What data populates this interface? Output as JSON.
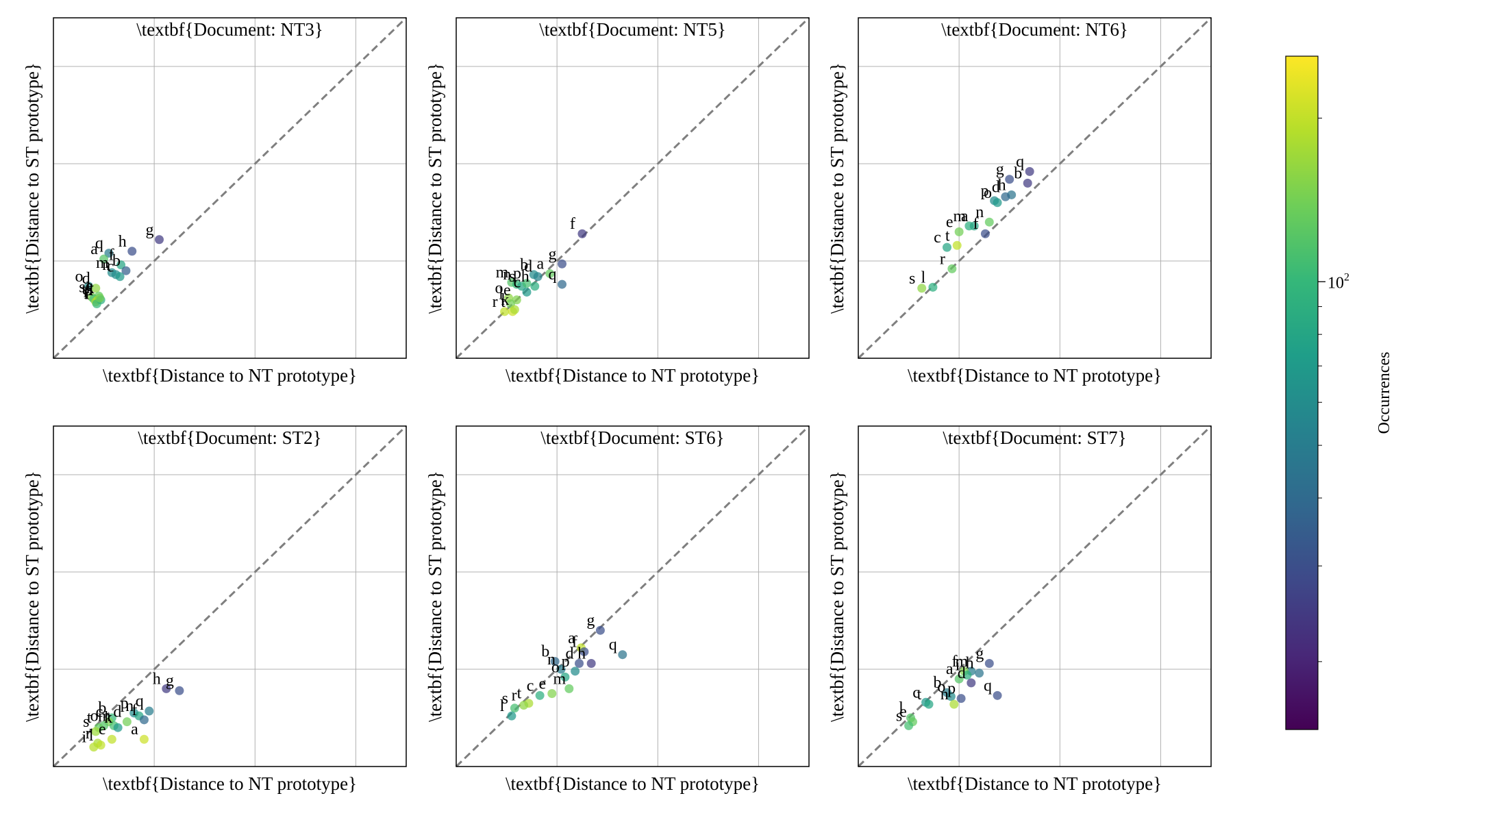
{
  "colors": {
    "grid": "#b0b0b0",
    "diagonal": "#7f7f7f",
    "frame": "#000000",
    "viridis": [
      "#440154",
      "#482878",
      "#3e4989",
      "#31688e",
      "#26828e",
      "#1f9e89",
      "#35b779",
      "#6ece58",
      "#b5de2b",
      "#fde725"
    ]
  },
  "chart_data": [
    {
      "type": "scatter",
      "title": "\\textbf{Document: NT3}",
      "xlabel": "\\textbf{Distance to NT prototype}",
      "ylabel": "\\textbf{Distance to ST prototype}",
      "xlim": [
        0,
        3.5
      ],
      "ylim": [
        0,
        3.5
      ],
      "grid": true,
      "diagonal": "y=x",
      "points": [
        {
          "label": "g",
          "x": 1.05,
          "y": 1.22,
          "occ": 25
        },
        {
          "label": "h",
          "x": 0.78,
          "y": 1.1,
          "occ": 30
        },
        {
          "label": "q",
          "x": 0.55,
          "y": 1.08,
          "occ": 50
        },
        {
          "label": "a",
          "x": 0.5,
          "y": 1.02,
          "occ": 120
        },
        {
          "label": "f",
          "x": 0.67,
          "y": 0.96,
          "occ": 80
        },
        {
          "label": "b",
          "x": 0.72,
          "y": 0.9,
          "occ": 35
        },
        {
          "label": "m",
          "x": 0.58,
          "y": 0.88,
          "occ": 60
        },
        {
          "label": "n",
          "x": 0.62,
          "y": 0.86,
          "occ": 60
        },
        {
          "label": "c",
          "x": 0.66,
          "y": 0.84,
          "occ": 70
        },
        {
          "label": "o",
          "x": 0.35,
          "y": 0.74,
          "occ": 60
        },
        {
          "label": "d",
          "x": 0.42,
          "y": 0.72,
          "occ": 160
        },
        {
          "label": "e",
          "x": 0.45,
          "y": 0.64,
          "occ": 130
        },
        {
          "label": "s",
          "x": 0.38,
          "y": 0.63,
          "occ": 150
        },
        {
          "label": "t",
          "x": 0.4,
          "y": 0.61,
          "occ": 110
        },
        {
          "label": "p",
          "x": 0.44,
          "y": 0.6,
          "occ": 200
        },
        {
          "label": "r",
          "x": 0.42,
          "y": 0.58,
          "occ": 180
        },
        {
          "label": "l",
          "x": 0.47,
          "y": 0.6,
          "occ": 90
        },
        {
          "label": "i",
          "x": 0.43,
          "y": 0.56,
          "occ": 100
        },
        {
          "label": "k",
          "x": 0.46,
          "y": 0.62,
          "occ": 140
        }
      ]
    },
    {
      "type": "scatter",
      "title": "\\textbf{Document: NT5}",
      "xlabel": "\\textbf{Distance to NT prototype}",
      "ylabel": "\\textbf{Distance to ST prototype}",
      "xlim": [
        0,
        3.5
      ],
      "ylim": [
        0,
        3.5
      ],
      "grid": true,
      "diagonal": "y=x",
      "points": [
        {
          "label": "f",
          "x": 1.25,
          "y": 1.28,
          "occ": 25
        },
        {
          "label": "g",
          "x": 1.05,
          "y": 0.97,
          "occ": 30
        },
        {
          "label": "a",
          "x": 0.93,
          "y": 0.87,
          "occ": 130
        },
        {
          "label": "b",
          "x": 0.77,
          "y": 0.86,
          "occ": 60
        },
        {
          "label": "d",
          "x": 0.81,
          "y": 0.84,
          "occ": 55
        },
        {
          "label": "q",
          "x": 1.05,
          "y": 0.76,
          "occ": 40
        },
        {
          "label": "m",
          "x": 0.55,
          "y": 0.78,
          "occ": 120
        },
        {
          "label": "n",
          "x": 0.6,
          "y": 0.76,
          "occ": 100
        },
        {
          "label": "s",
          "x": 0.65,
          "y": 0.74,
          "occ": 80
        },
        {
          "label": "p",
          "x": 0.7,
          "y": 0.77,
          "occ": 110
        },
        {
          "label": "h",
          "x": 0.78,
          "y": 0.74,
          "occ": 90
        },
        {
          "label": "c",
          "x": 0.7,
          "y": 0.68,
          "occ": 70
        },
        {
          "label": "o",
          "x": 0.52,
          "y": 0.62,
          "occ": 160
        },
        {
          "label": "e",
          "x": 0.6,
          "y": 0.6,
          "occ": 150
        },
        {
          "label": "l",
          "x": 0.54,
          "y": 0.56,
          "occ": 140
        },
        {
          "label": "r",
          "x": 0.48,
          "y": 0.48,
          "occ": 200
        },
        {
          "label": "t",
          "x": 0.56,
          "y": 0.48,
          "occ": 210
        },
        {
          "label": "k",
          "x": 0.58,
          "y": 0.5,
          "occ": 180
        }
      ]
    },
    {
      "type": "scatter",
      "title": "\\textbf{Document: NT6}",
      "xlabel": "\\textbf{Distance to NT prototype}",
      "ylabel": "\\textbf{Distance to ST prototype}",
      "xlim": [
        0,
        3.5
      ],
      "ylim": [
        0,
        3.5
      ],
      "grid": true,
      "diagonal": "y=x",
      "points": [
        {
          "label": "q",
          "x": 1.7,
          "y": 1.92,
          "occ": 25
        },
        {
          "label": "g",
          "x": 1.5,
          "y": 1.84,
          "occ": 30
        },
        {
          "label": "b",
          "x": 1.68,
          "y": 1.8,
          "occ": 25
        },
        {
          "label": "h",
          "x": 1.52,
          "y": 1.68,
          "occ": 45
        },
        {
          "label": "d",
          "x": 1.46,
          "y": 1.66,
          "occ": 40
        },
        {
          "label": "p",
          "x": 1.35,
          "y": 1.62,
          "occ": 60
        },
        {
          "label": "o",
          "x": 1.38,
          "y": 1.6,
          "occ": 70
        },
        {
          "label": "m",
          "x": 1.1,
          "y": 1.36,
          "occ": 90
        },
        {
          "label": "a",
          "x": 1.15,
          "y": 1.36,
          "occ": 80
        },
        {
          "label": "n",
          "x": 1.3,
          "y": 1.4,
          "occ": 130
        },
        {
          "label": "e",
          "x": 1.0,
          "y": 1.3,
          "occ": 140
        },
        {
          "label": "f",
          "x": 1.26,
          "y": 1.28,
          "occ": 30
        },
        {
          "label": "c",
          "x": 0.88,
          "y": 1.14,
          "occ": 80
        },
        {
          "label": "t",
          "x": 0.98,
          "y": 1.16,
          "occ": 200
        },
        {
          "label": "r",
          "x": 0.93,
          "y": 0.92,
          "occ": 130
        },
        {
          "label": "l",
          "x": 0.74,
          "y": 0.73,
          "occ": 90
        },
        {
          "label": "s",
          "x": 0.63,
          "y": 0.72,
          "occ": 160
        }
      ]
    },
    {
      "type": "scatter",
      "title": "\\textbf{Document: ST2}",
      "xlabel": "\\textbf{Distance to NT prototype}",
      "ylabel": "\\textbf{Distance to ST prototype}",
      "xlim": [
        0,
        3.5
      ],
      "ylim": [
        0,
        3.5
      ],
      "grid": true,
      "diagonal": "y=x",
      "points": [
        {
          "label": "h",
          "x": 1.12,
          "y": 0.8,
          "occ": 25
        },
        {
          "label": "g",
          "x": 1.25,
          "y": 0.78,
          "occ": 30
        },
        {
          "label": "q",
          "x": 0.95,
          "y": 0.57,
          "occ": 50
        },
        {
          "label": "p",
          "x": 0.8,
          "y": 0.55,
          "occ": 60
        },
        {
          "label": "n",
          "x": 0.85,
          "y": 0.52,
          "occ": 80
        },
        {
          "label": "f",
          "x": 0.9,
          "y": 0.48,
          "occ": 40
        },
        {
          "label": "b",
          "x": 0.58,
          "y": 0.5,
          "occ": 100
        },
        {
          "label": "c",
          "x": 0.55,
          "y": 0.46,
          "occ": 150
        },
        {
          "label": "d",
          "x": 0.73,
          "y": 0.46,
          "occ": 140
        },
        {
          "label": "o",
          "x": 0.5,
          "y": 0.42,
          "occ": 120
        },
        {
          "label": "m",
          "x": 0.6,
          "y": 0.42,
          "occ": 110
        },
        {
          "label": "k",
          "x": 0.64,
          "y": 0.4,
          "occ": 70
        },
        {
          "label": "t",
          "x": 0.45,
          "y": 0.4,
          "occ": 130
        },
        {
          "label": "s",
          "x": 0.42,
          "y": 0.36,
          "occ": 170
        },
        {
          "label": "e",
          "x": 0.58,
          "y": 0.28,
          "occ": 200
        },
        {
          "label": "a",
          "x": 0.9,
          "y": 0.28,
          "occ": 210
        },
        {
          "label": "r",
          "x": 0.44,
          "y": 0.24,
          "occ": 180
        },
        {
          "label": "l",
          "x": 0.47,
          "y": 0.22,
          "occ": 200
        },
        {
          "label": "i",
          "x": 0.4,
          "y": 0.2,
          "occ": 190
        }
      ]
    },
    {
      "type": "scatter",
      "title": "\\textbf{Document: ST6}",
      "xlabel": "\\textbf{Distance to NT prototype}",
      "ylabel": "\\textbf{Distance to ST prototype}",
      "xlim": [
        0,
        3.5
      ],
      "ylim": [
        0,
        3.5
      ],
      "grid": true,
      "diagonal": "y=x",
      "points": [
        {
          "label": "g",
          "x": 1.43,
          "y": 1.4,
          "occ": 30
        },
        {
          "label": "q",
          "x": 1.65,
          "y": 1.15,
          "occ": 45
        },
        {
          "label": "a",
          "x": 1.24,
          "y": 1.22,
          "occ": 200
        },
        {
          "label": "f",
          "x": 1.27,
          "y": 1.18,
          "occ": 30
        },
        {
          "label": "h",
          "x": 1.34,
          "y": 1.06,
          "occ": 25
        },
        {
          "label": "d",
          "x": 1.22,
          "y": 1.06,
          "occ": 30
        },
        {
          "label": "b",
          "x": 0.98,
          "y": 1.08,
          "occ": 40
        },
        {
          "label": "n",
          "x": 1.04,
          "y": 1.0,
          "occ": 50
        },
        {
          "label": "p",
          "x": 1.18,
          "y": 0.98,
          "occ": 60
        },
        {
          "label": "o",
          "x": 1.08,
          "y": 0.92,
          "occ": 80
        },
        {
          "label": "m",
          "x": 1.12,
          "y": 0.8,
          "occ": 130
        },
        {
          "label": "e",
          "x": 0.95,
          "y": 0.75,
          "occ": 150
        },
        {
          "label": "c",
          "x": 0.83,
          "y": 0.73,
          "occ": 90
        },
        {
          "label": "t",
          "x": 0.72,
          "y": 0.65,
          "occ": 180
        },
        {
          "label": "r",
          "x": 0.67,
          "y": 0.63,
          "occ": 160
        },
        {
          "label": "s",
          "x": 0.58,
          "y": 0.6,
          "occ": 110
        },
        {
          "label": "l",
          "x": 0.55,
          "y": 0.52,
          "occ": 70
        }
      ]
    },
    {
      "type": "scatter",
      "title": "\\textbf{Document: ST7}",
      "xlabel": "\\textbf{Distance to NT prototype}",
      "ylabel": "\\textbf{Distance to ST prototype}",
      "xlim": [
        0,
        3.5
      ],
      "ylim": [
        0,
        3.5
      ],
      "grid": true,
      "diagonal": "y=x",
      "points": [
        {
          "label": "g",
          "x": 1.3,
          "y": 1.06,
          "occ": 30
        },
        {
          "label": "q",
          "x": 1.38,
          "y": 0.73,
          "occ": 30
        },
        {
          "label": "m",
          "x": 1.12,
          "y": 0.98,
          "occ": 50
        },
        {
          "label": "f",
          "x": 1.05,
          "y": 0.98,
          "occ": 150
        },
        {
          "label": "h",
          "x": 1.2,
          "y": 0.96,
          "occ": 45
        },
        {
          "label": "i",
          "x": 1.08,
          "y": 0.94,
          "occ": 90
        },
        {
          "label": "a",
          "x": 1.0,
          "y": 0.9,
          "occ": 120
        },
        {
          "label": "d",
          "x": 1.12,
          "y": 0.86,
          "occ": 25
        },
        {
          "label": "b",
          "x": 0.88,
          "y": 0.76,
          "occ": 50
        },
        {
          "label": "o",
          "x": 0.92,
          "y": 0.72,
          "occ": 60
        },
        {
          "label": "p",
          "x": 1.02,
          "y": 0.7,
          "occ": 30
        },
        {
          "label": "n",
          "x": 0.95,
          "y": 0.64,
          "occ": 180
        },
        {
          "label": "c",
          "x": 0.67,
          "y": 0.66,
          "occ": 70
        },
        {
          "label": "t",
          "x": 0.7,
          "y": 0.64,
          "occ": 80
        },
        {
          "label": "l",
          "x": 0.52,
          "y": 0.5,
          "occ": 120
        },
        {
          "label": "e",
          "x": 0.54,
          "y": 0.46,
          "occ": 130
        },
        {
          "label": "s",
          "x": 0.5,
          "y": 0.42,
          "occ": 110
        }
      ]
    }
  ],
  "colorbar": {
    "label": "Occurrences",
    "scale": "log",
    "range": [
      15,
      260
    ],
    "tick_text": "10",
    "tick_exp": "2",
    "tick_value": 100,
    "minor_ticks": [
      20,
      30,
      40,
      50,
      60,
      70,
      80,
      90,
      200
    ]
  }
}
